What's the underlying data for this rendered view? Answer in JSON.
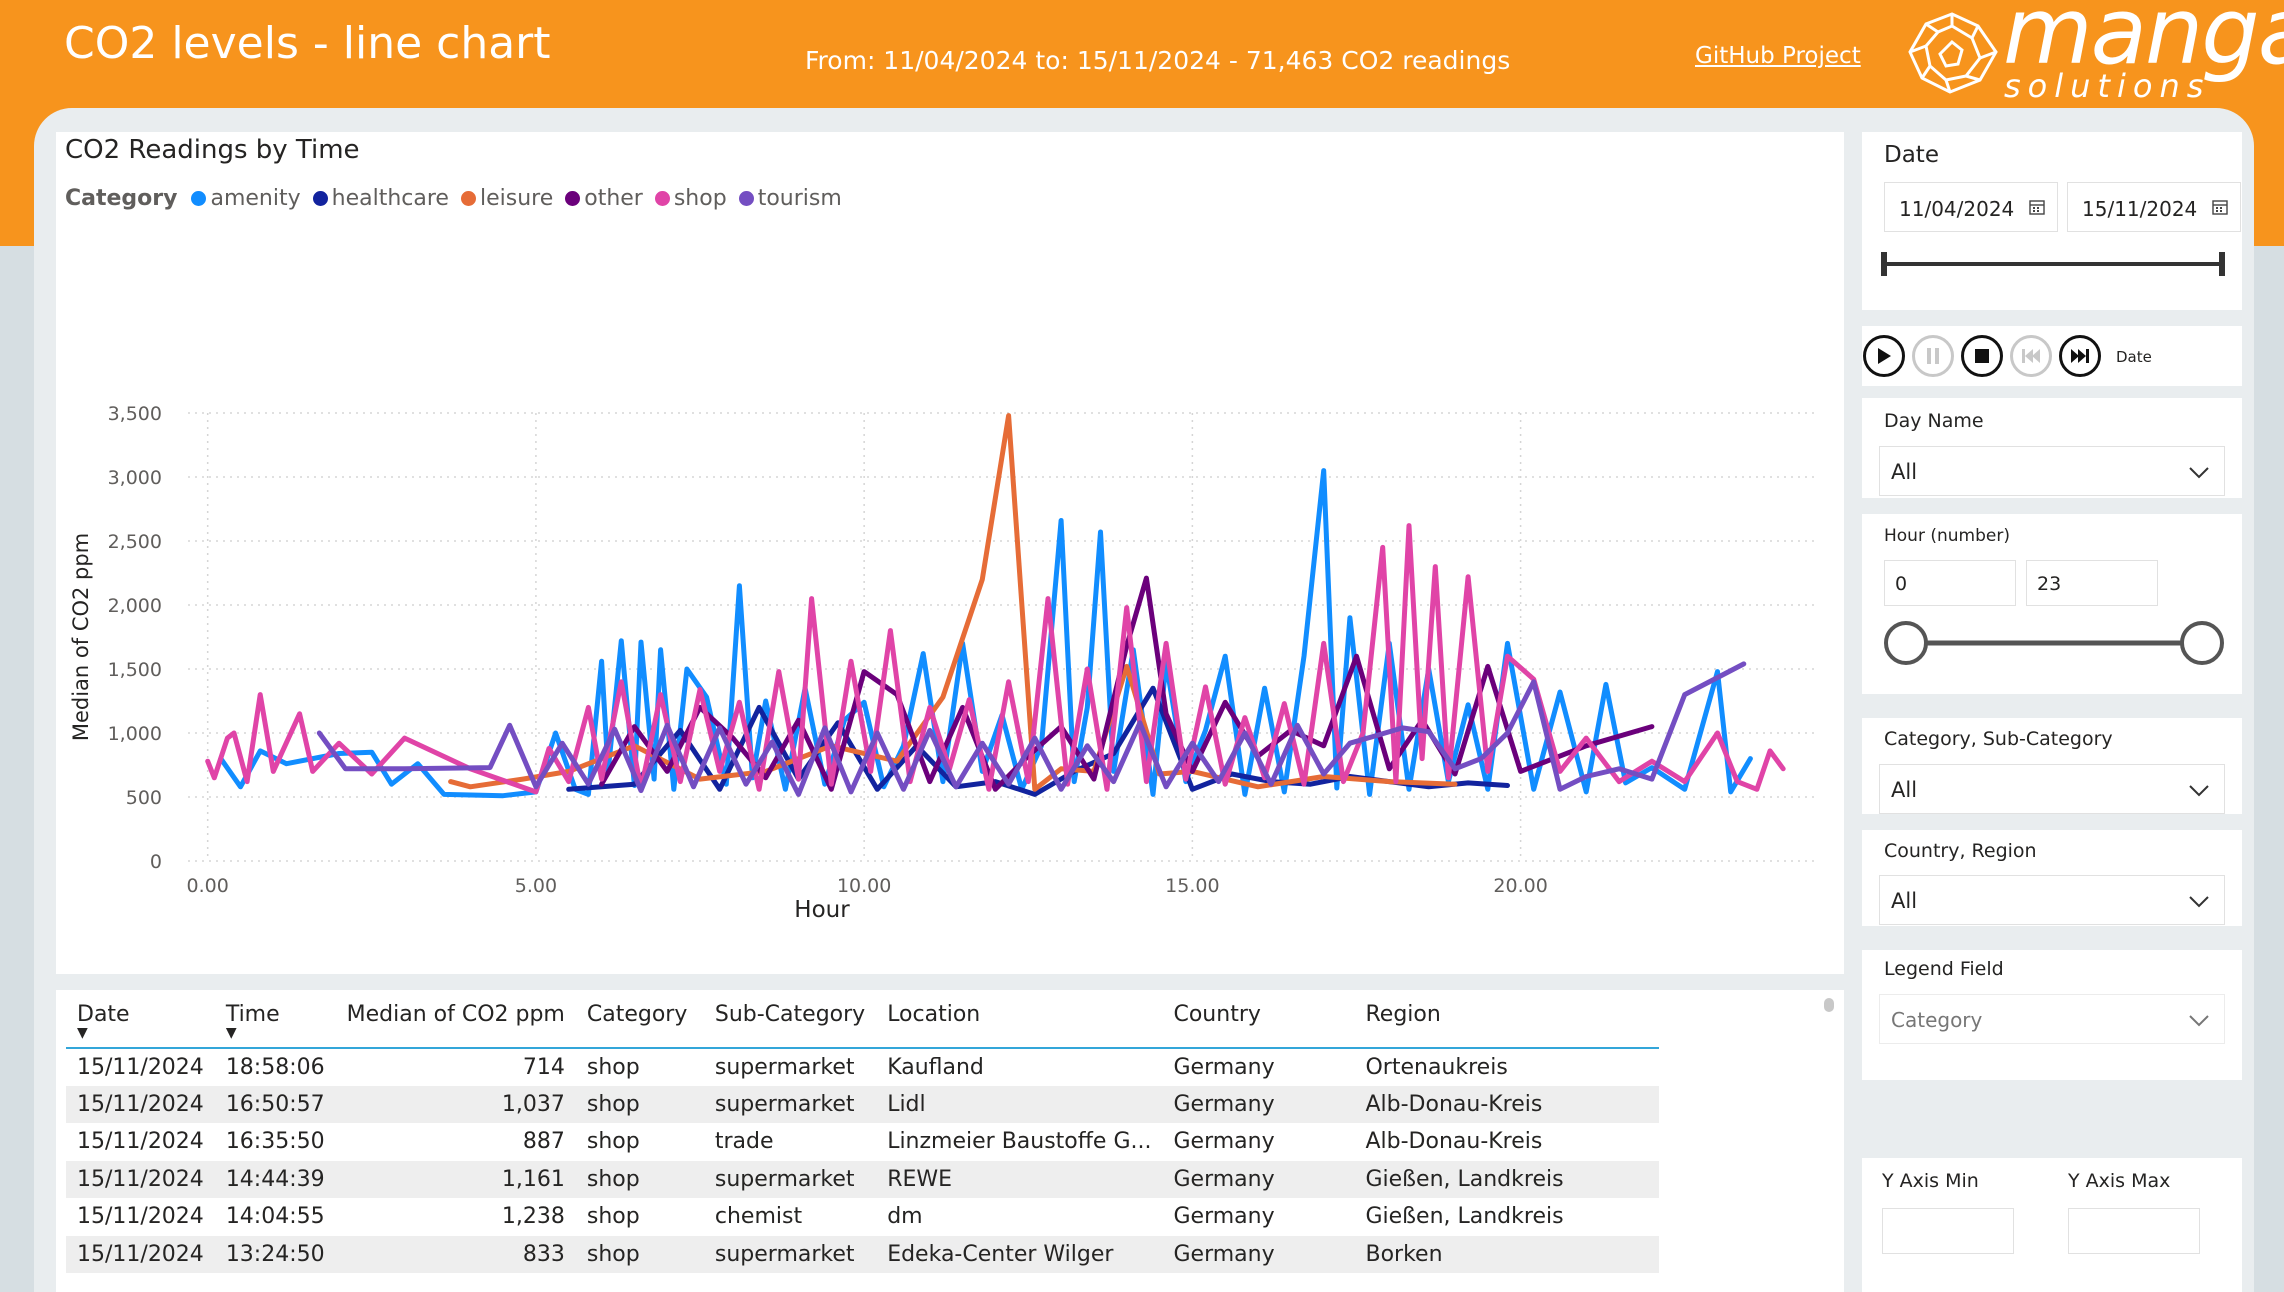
{
  "header": {
    "title": "CO2 levels - line chart",
    "range_text": "From: 11/04/2024 to: 15/11/2024 - 71,463 CO2 readings",
    "github_link": "GitHub Project",
    "logo_word": "manga",
    "logo_sub": "solutions"
  },
  "chart": {
    "title": "CO2 Readings by Time",
    "legend_title": "Category"
  },
  "chart_data": {
    "type": "line",
    "title": "CO2 Readings by Time",
    "xlabel": "Hour",
    "ylabel": "Median of CO2 ppm",
    "xlim": [
      -0.3,
      24.5
    ],
    "ylim": [
      0,
      3500
    ],
    "x_ticks": [
      "0.00",
      "5.00",
      "10.00",
      "15.00",
      "20.00"
    ],
    "y_ticks": [
      "0",
      "500",
      "1,000",
      "1,500",
      "2,000",
      "2,500",
      "3,000",
      "3,500"
    ],
    "grid": true,
    "legend_position": "top-left",
    "series": [
      {
        "name": "amenity",
        "color": "#118dff",
        "x": [
          0.2,
          0.5,
          0.8,
          1.2,
          2.0,
          2.5,
          2.8,
          3.2,
          3.6,
          4.5,
          5.0,
          5.3,
          5.6,
          5.8,
          6.0,
          6.1,
          6.3,
          6.5,
          6.6,
          6.8,
          6.9,
          7.1,
          7.3,
          7.6,
          7.9,
          8.1,
          8.3,
          8.5,
          8.8,
          9.1,
          9.4,
          9.7,
          10.0,
          10.3,
          10.6,
          10.9,
          11.2,
          11.5,
          11.8,
          12.1,
          12.4,
          12.7,
          13.0,
          13.2,
          13.4,
          13.6,
          13.8,
          14.1,
          14.4,
          14.6,
          14.9,
          15.2,
          15.5,
          15.8,
          16.1,
          16.4,
          16.7,
          17.0,
          17.2,
          17.4,
          17.7,
          18.0,
          18.3,
          18.6,
          18.9,
          19.2,
          19.5,
          19.8,
          20.2,
          20.6,
          21.0,
          21.3,
          21.6,
          22.0,
          22.5,
          23.0,
          23.2,
          23.5
        ],
        "y": [
          800,
          580,
          860,
          760,
          840,
          850,
          600,
          760,
          520,
          510,
          540,
          1000,
          560,
          520,
          1560,
          700,
          1720,
          590,
          1710,
          640,
          1650,
          560,
          1500,
          1280,
          600,
          2150,
          650,
          1250,
          560,
          1350,
          600,
          1100,
          1240,
          580,
          900,
          1620,
          620,
          1700,
          700,
          1140,
          560,
          900,
          2660,
          620,
          1200,
          2570,
          700,
          1650,
          520,
          1550,
          620,
          1020,
          1600,
          520,
          1350,
          540,
          1600,
          3050,
          570,
          1900,
          520,
          1700,
          560,
          1500,
          620,
          1220,
          560,
          1700,
          560,
          1320,
          540,
          1380,
          610,
          730,
          560,
          1480,
          540,
          800
        ]
      },
      {
        "name": "healthcare",
        "color": "#12239e",
        "x": [
          5.5,
          6.5,
          7.2,
          7.8,
          8.4,
          9.0,
          9.6,
          10.2,
          10.8,
          11.4,
          12.0,
          12.6,
          13.2,
          13.8,
          14.4,
          15.0,
          15.6,
          16.2,
          16.8,
          17.4,
          18.0,
          18.6,
          19.2,
          19.8
        ],
        "y": [
          560,
          600,
          1020,
          560,
          1200,
          640,
          1080,
          560,
          900,
          580,
          620,
          520,
          700,
          840,
          1350,
          560,
          680,
          620,
          600,
          660,
          620,
          580,
          610,
          590
        ]
      },
      {
        "name": "leisure",
        "color": "#e66c37",
        "x": [
          3.7,
          4.0,
          4.8,
          5.5,
          6.5,
          7.5,
          8.5,
          9.5,
          10.5,
          11.2,
          11.8,
          12.2,
          12.6,
          13.0,
          13.5,
          14.0,
          14.5,
          15.0,
          16.0,
          17.0,
          18.0,
          19.0
        ],
        "y": [
          620,
          580,
          640,
          700,
          900,
          640,
          700,
          900,
          780,
          1280,
          2200,
          3480,
          560,
          720,
          700,
          1520,
          680,
          700,
          580,
          660,
          620,
          600
        ]
      },
      {
        "name": "other",
        "color": "#6b007b",
        "x": [
          6.0,
          6.5,
          7.0,
          7.5,
          8.0,
          8.5,
          9.0,
          9.5,
          10.0,
          10.5,
          11.0,
          11.5,
          12.0,
          12.5,
          13.0,
          13.5,
          14.0,
          14.3,
          14.6,
          15.0,
          15.5,
          16.0,
          16.5,
          17.0,
          17.5,
          18.0,
          18.5,
          19.0,
          19.5,
          20.0,
          21.0,
          22.0
        ],
        "y": [
          600,
          1050,
          700,
          1200,
          960,
          650,
          1100,
          560,
          1480,
          1300,
          620,
          1200,
          560,
          820,
          1050,
          640,
          1680,
          2210,
          1150,
          700,
          1240,
          820,
          1020,
          900,
          1600,
          720,
          1100,
          680,
          1520,
          700,
          900,
          1050
        ]
      },
      {
        "name": "shop",
        "color": "#e044a7",
        "x": [
          0.0,
          0.1,
          0.3,
          0.4,
          0.6,
          0.8,
          1.0,
          1.4,
          1.6,
          2.0,
          2.5,
          3.0,
          4.0,
          5.0,
          5.2,
          5.5,
          5.8,
          6.0,
          6.3,
          6.6,
          6.9,
          7.2,
          7.5,
          7.8,
          8.1,
          8.4,
          8.7,
          9.0,
          9.2,
          9.5,
          9.8,
          10.1,
          10.4,
          10.7,
          11.0,
          11.3,
          11.6,
          11.9,
          12.2,
          12.5,
          12.8,
          13.1,
          13.4,
          13.7,
          14.0,
          14.3,
          14.6,
          14.9,
          15.2,
          15.5,
          15.8,
          16.1,
          16.4,
          16.7,
          17.0,
          17.3,
          17.6,
          17.9,
          18.1,
          18.3,
          18.5,
          18.7,
          18.9,
          19.2,
          19.5,
          19.8,
          20.2,
          20.6,
          21.0,
          21.5,
          22.0,
          22.5,
          23.0,
          23.3,
          23.6,
          23.8,
          24.0
        ],
        "y": [
          780,
          650,
          960,
          1000,
          620,
          1300,
          700,
          1150,
          700,
          920,
          680,
          960,
          720,
          540,
          880,
          620,
          1200,
          640,
          1400,
          560,
          1300,
          620,
          1340,
          700,
          1240,
          560,
          1480,
          640,
          2050,
          600,
          1560,
          700,
          1800,
          620,
          1200,
          720,
          1260,
          560,
          1400,
          620,
          2050,
          600,
          1500,
          560,
          1980,
          620,
          1700,
          640,
          1360,
          600,
          1120,
          650,
          1230,
          600,
          1700,
          620,
          1000,
          2450,
          620,
          2620,
          800,
          2300,
          650,
          2220,
          700,
          1600,
          1420,
          700,
          960,
          620,
          780,
          620,
          1000,
          620,
          560,
          860,
          720
        ]
      },
      {
        "name": "tourism",
        "color": "#744ec2",
        "x": [
          1.7,
          2.1,
          3.0,
          4.3,
          4.6,
          5.0,
          5.4,
          5.8,
          6.2,
          6.6,
          7.0,
          7.4,
          7.8,
          8.2,
          8.6,
          9.0,
          9.4,
          9.8,
          10.2,
          10.6,
          11.0,
          11.4,
          11.8,
          12.2,
          12.6,
          13.0,
          13.4,
          13.8,
          14.2,
          14.6,
          15.0,
          15.4,
          15.8,
          16.2,
          16.6,
          17.0,
          17.4,
          17.8,
          18.2,
          18.6,
          19.0,
          19.4,
          19.8,
          20.2,
          20.6,
          21.0,
          21.5,
          22.0,
          22.5,
          23.4
        ],
        "y": [
          1000,
          720,
          720,
          730,
          1060,
          580,
          920,
          600,
          1030,
          550,
          1060,
          580,
          1040,
          600,
          930,
          520,
          1040,
          540,
          1000,
          560,
          1020,
          580,
          920,
          600,
          960,
          560,
          900,
          620,
          1080,
          580,
          920,
          620,
          1000,
          600,
          1060,
          680,
          920,
          980,
          1040,
          1010,
          720,
          800,
          1000,
          1400,
          560,
          660,
          720,
          640,
          1300,
          1540
        ]
      }
    ]
  },
  "table": {
    "columns": [
      "Date",
      "Time",
      "Median of CO2 ppm",
      "Category",
      "Sub-Category",
      "Location",
      "Country",
      "Region"
    ],
    "rows": [
      [
        "15/11/2024",
        "18:58:06",
        "714",
        "shop",
        "supermarket",
        "Kaufland",
        "Germany",
        "Ortenaukreis"
      ],
      [
        "15/11/2024",
        "16:50:57",
        "1,037",
        "shop",
        "supermarket",
        "Lidl",
        "Germany",
        "Alb-Donau-Kreis"
      ],
      [
        "15/11/2024",
        "16:35:50",
        "887",
        "shop",
        "trade",
        "Linzmeier Baustoffe G...",
        "Germany",
        "Alb-Donau-Kreis"
      ],
      [
        "15/11/2024",
        "14:44:39",
        "1,161",
        "shop",
        "supermarket",
        "REWE",
        "Germany",
        "Gießen, Landkreis"
      ],
      [
        "15/11/2024",
        "14:04:55",
        "1,238",
        "shop",
        "chemist",
        "dm",
        "Germany",
        "Gießen, Landkreis"
      ],
      [
        "15/11/2024",
        "13:24:50",
        "833",
        "shop",
        "supermarket",
        "Edeka-Center Wilger",
        "Germany",
        "Borken"
      ]
    ]
  },
  "slicers": {
    "date": {
      "title": "Date",
      "from": "11/04/2024",
      "to": "15/11/2024"
    },
    "play_axis": {
      "label": "Date"
    },
    "day_name": {
      "title": "Day Name",
      "value": "All"
    },
    "hour": {
      "title": "Hour (number)",
      "min": "0",
      "max": "23"
    },
    "category": {
      "title": "Category, Sub-Category",
      "value": "All"
    },
    "country": {
      "title": "Country, Region",
      "value": "All"
    },
    "legend_field": {
      "title": "Legend Field",
      "value": "Category"
    },
    "y_axis": {
      "min_title": "Y Axis Min",
      "max_title": "Y Axis Max"
    }
  },
  "colors": {
    "header": "#f7941d",
    "accent": "#33a6d9"
  },
  "icons": [
    "calendar-icon",
    "play-icon",
    "pause-icon",
    "stop-icon",
    "previous-icon",
    "next-icon",
    "chevron-down-icon",
    "manga-logo-icon"
  ]
}
